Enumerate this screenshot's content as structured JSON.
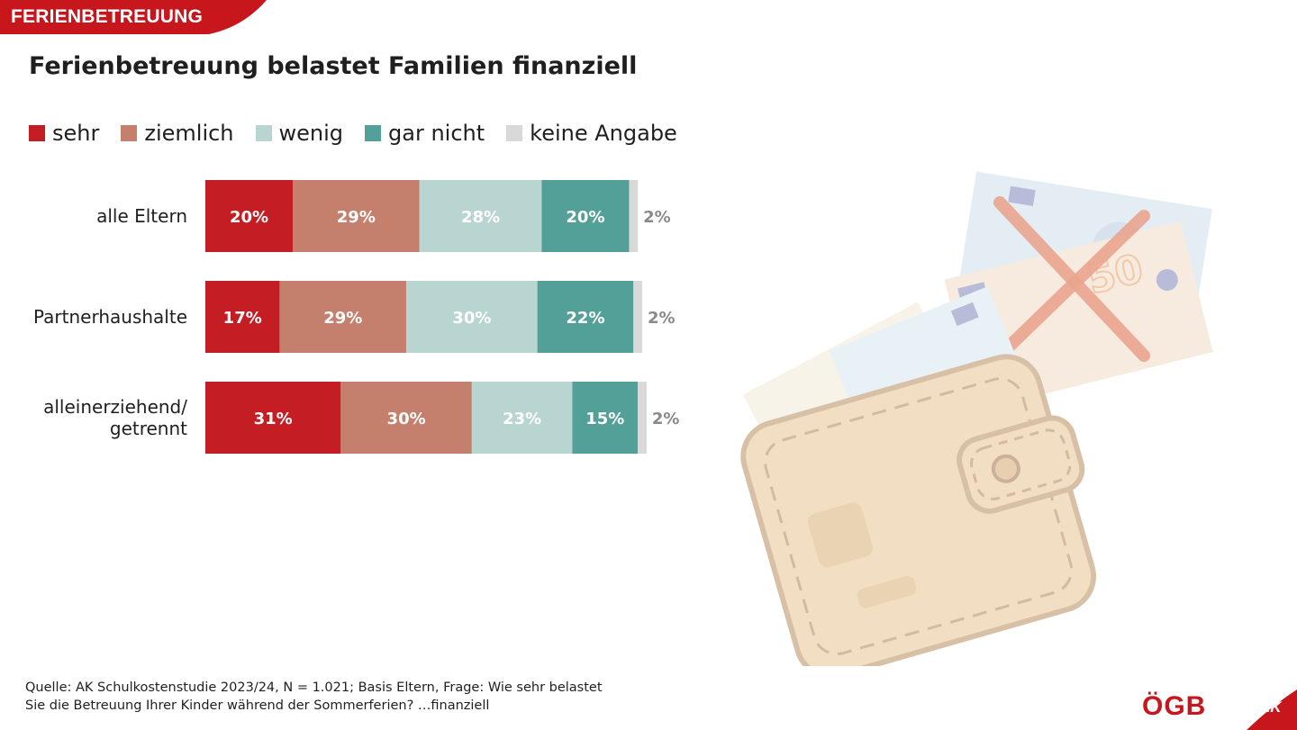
{
  "header": {
    "tag": "FERIENBETREUUNG"
  },
  "colors": {
    "sehr": "#c41e24",
    "ziemlich": "#c47f6d",
    "wenig": "#b8d5d1",
    "gar_nicht": "#53a099",
    "keine_angabe": "#d9d9d9",
    "brand_red": "#c8161d"
  },
  "chart_data": {
    "type": "bar",
    "orientation": "horizontal",
    "stacked": true,
    "title": "Ferienbetreuung belastet Familien finanziell",
    "legend_position": "top-left",
    "categories": [
      "alle Eltern",
      "Partnerhaushalte",
      "alleinerziehend/ getrennt"
    ],
    "series": [
      {
        "name": "sehr",
        "values": [
          20,
          17,
          31
        ],
        "labels": [
          "20%",
          "17%",
          "31%"
        ]
      },
      {
        "name": "ziemlich",
        "values": [
          29,
          29,
          30
        ],
        "labels": [
          "29%",
          "29%",
          "30%"
        ]
      },
      {
        "name": "wenig",
        "values": [
          28,
          30,
          23
        ],
        "labels": [
          "28%",
          "30%",
          "23%"
        ]
      },
      {
        "name": "gar nicht",
        "values": [
          20,
          22,
          15
        ],
        "labels": [
          "20%",
          "22%",
          "15%"
        ]
      },
      {
        "name": "keine Angabe",
        "values": [
          2,
          2,
          2
        ],
        "labels": [
          "2%",
          "2%",
          "2%"
        ]
      }
    ],
    "xlim": [
      0,
      100
    ]
  },
  "source": {
    "line1": "Quelle: AK Schulkostenstudie 2023/24, N = 1.021; Basis Eltern, Frage: Wie sehr belastet",
    "line2": "Sie die Betreuung Ihrer Kinder während der Sommerferien? …finanziell"
  },
  "logos": {
    "ogb": "ÖGB",
    "ak": "AK"
  },
  "illustration": {
    "icon": "wallet-with-euro-banknotes-icon"
  }
}
